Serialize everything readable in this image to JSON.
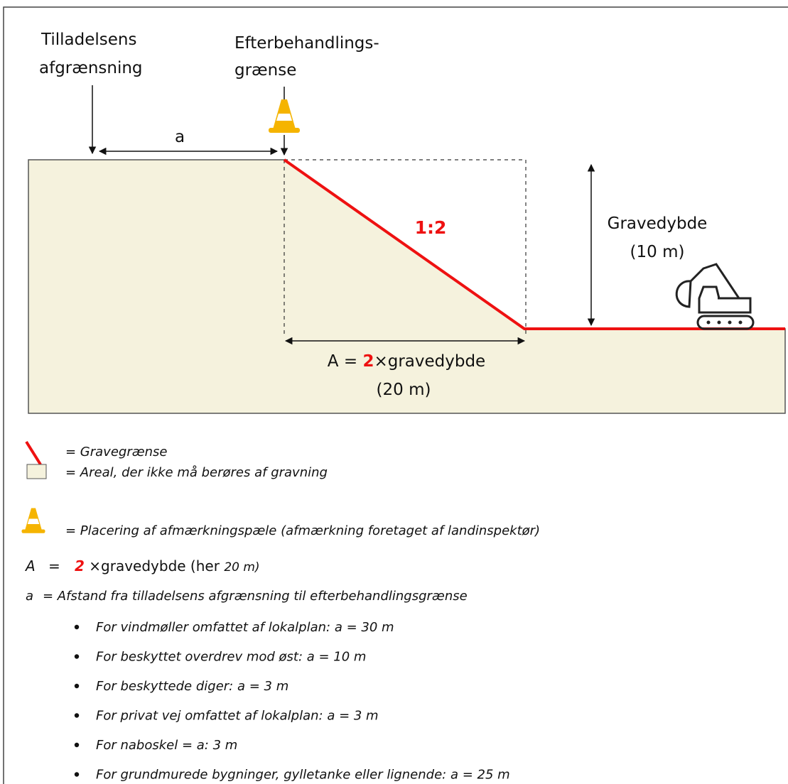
{
  "labels": {
    "permit_boundary": [
      "Tilladelsens",
      "afgrænsning"
    ],
    "restoration_boundary": [
      "Efterbehandlings-",
      "grænse"
    ],
    "distance": "a",
    "slope": "1:2",
    "depth": [
      "Gravedybde",
      "(10 m)"
    ],
    "width": {
      "prefix": "A = ",
      "factor": "2",
      "suffix": "×gravedybde",
      "value": "(20 m)"
    }
  },
  "legend": [
    "= Gravegrænse",
    "= Areal, der ikke må berøres af gravning",
    "= Placering af afmærkningspæle (afmærkning foretaget af landinspektør)"
  ],
  "definitions": [
    {
      "symbol": "A",
      "equals": "=",
      "factor": "2",
      "text": " ×gravedybde (her ",
      "value": "20 m)"
    },
    {
      "symbol": "a",
      "text": "= Afstand fra tilladelsens afgrænsning til efterbehandlingsgrænse",
      "items": [
        "For vindmøller omfattet af lokalplan: a = 30 m",
        "For beskyttet overdrev mod øst: a = 10 m",
        "For beskyttede diger: a = 3 m",
        "For privat vej omfattet af lokalplan: a = 3 m",
        "For naboskel = a: 3 m",
        "For grundmurede bygninger, gylletanke eller lignende: a = 25 m"
      ]
    }
  ]
}
